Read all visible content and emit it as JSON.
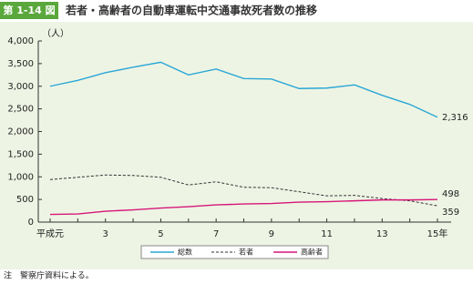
{
  "chart_data": {
    "type": "line",
    "figure_label": "第 1-14 図",
    "title": "若者・高齢者の自動車運転中交通事故死者数の推移",
    "y_label": "（人）",
    "categories": [
      "平成元",
      null,
      "3",
      null,
      "5",
      null,
      "7",
      null,
      "9",
      null,
      "11",
      null,
      "13",
      null,
      "15年"
    ],
    "series": [
      {
        "name": "総数",
        "color": "#2aa7d6",
        "dash": false,
        "values": [
          3000,
          3130,
          3300,
          3420,
          3530,
          3250,
          3380,
          3170,
          3160,
          2950,
          2960,
          3030,
          2800,
          2600,
          2316
        ],
        "value_labels": [
          null,
          null,
          null,
          null,
          null,
          null,
          null,
          null,
          null,
          null,
          null,
          null,
          null,
          null,
          "2,316"
        ]
      },
      {
        "name": "若者",
        "color": "#333333",
        "dash": true,
        "values": [
          940,
          990,
          1040,
          1030,
          990,
          820,
          890,
          770,
          760,
          670,
          580,
          590,
          520,
          470,
          359
        ],
        "value_labels": [
          null,
          null,
          null,
          null,
          null,
          null,
          null,
          null,
          null,
          null,
          null,
          null,
          null,
          null,
          "359"
        ]
      },
      {
        "name": "高齢者",
        "color": "#d6177a",
        "dash": false,
        "values": [
          170,
          180,
          240,
          270,
          310,
          340,
          380,
          400,
          410,
          440,
          450,
          470,
          490,
          490,
          498
        ],
        "value_labels": [
          null,
          null,
          null,
          null,
          null,
          null,
          null,
          null,
          null,
          null,
          null,
          null,
          null,
          null,
          "498"
        ]
      }
    ],
    "ylim": [
      0,
      4000
    ],
    "yticks": [
      0,
      500,
      {
        "value": 1000,
        "label": "1,000"
      },
      {
        "value": 1500,
        "label": "1,500"
      },
      {
        "value": 2000,
        "label": "2,000"
      },
      {
        "value": 2500,
        "label": "2,500"
      },
      {
        "value": 3000,
        "label": "3,000"
      },
      {
        "value": 3500,
        "label": "3,500"
      },
      {
        "value": 4000,
        "label": "4,000"
      }
    ],
    "grid": false,
    "note": "注　警察庁資料による。"
  }
}
